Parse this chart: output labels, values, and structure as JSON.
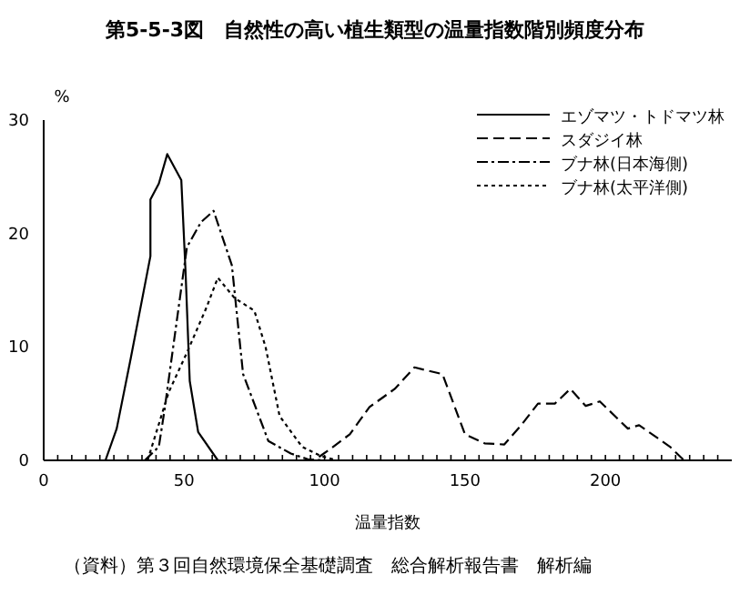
{
  "chart_data": {
    "type": "line",
    "title": "第5-5-3図　自然性の高い植生類型の温量指数階別頻度分布",
    "xlabel": "温量指数",
    "ylabel": "%",
    "annotations": [
      "（資料）第３回自然環境保全基礎調査　総合解析報告書　解析編"
    ],
    "legend": "top right",
    "grid": false,
    "marker": "none",
    "xlim": [
      0,
      245
    ],
    "ylim": [
      0,
      30
    ],
    "xticks": [
      0,
      {
        "value": 5,
        "label": null
      },
      {
        "value": 10,
        "label": null
      },
      {
        "value": 15,
        "label": null
      },
      {
        "value": 20,
        "label": null
      },
      {
        "value": 25,
        "label": null
      },
      {
        "value": 30,
        "label": null
      },
      {
        "value": 35,
        "label": null
      },
      {
        "value": 40,
        "label": null
      },
      {
        "value": 45,
        "label": null
      },
      50,
      {
        "value": 55,
        "label": null
      },
      {
        "value": 60,
        "label": null
      },
      {
        "value": 65,
        "label": null
      },
      {
        "value": 70,
        "label": null
      },
      {
        "value": 75,
        "label": null
      },
      {
        "value": 80,
        "label": null
      },
      {
        "value": 85,
        "label": null
      },
      {
        "value": 90,
        "label": null
      },
      {
        "value": 95,
        "label": null
      },
      100,
      {
        "value": 105,
        "label": null
      },
      {
        "value": 110,
        "label": null
      },
      {
        "value": 115,
        "label": null
      },
      {
        "value": 120,
        "label": null
      },
      {
        "value": 125,
        "label": null
      },
      {
        "value": 130,
        "label": null
      },
      {
        "value": 135,
        "label": null
      },
      {
        "value": 140,
        "label": null
      },
      {
        "value": 145,
        "label": null
      },
      150,
      {
        "value": 155,
        "label": null
      },
      {
        "value": 160,
        "label": null
      },
      {
        "value": 165,
        "label": null
      },
      {
        "value": 170,
        "label": null
      },
      {
        "value": 175,
        "label": null
      },
      {
        "value": 180,
        "label": null
      },
      {
        "value": 185,
        "label": null
      },
      {
        "value": 190,
        "label": null
      },
      {
        "value": 195,
        "label": null
      },
      200,
      {
        "value": 205,
        "label": null
      },
      {
        "value": 210,
        "label": null
      },
      {
        "value": 215,
        "label": null
      },
      {
        "value": 220,
        "label": null
      },
      {
        "value": 225,
        "label": null
      },
      {
        "value": 230,
        "label": null
      },
      {
        "value": 235,
        "label": null
      },
      {
        "value": 240,
        "label": null
      }
    ],
    "yticks": [
      0,
      10,
      20,
      30
    ],
    "series": [
      {
        "name": "エゾマツ・トドマツ林",
        "color": "#000000",
        "line_style": "solid",
        "x": [
          10,
          19,
          22,
          26,
          31,
          38,
          38,
          41,
          44,
          49,
          50.5,
          52,
          55,
          62
        ],
        "values": [
          0,
          0,
          0,
          2.8,
          9,
          18,
          23,
          24.4,
          27,
          24.7,
          16.7,
          7,
          2.5,
          0
        ]
      },
      {
        "name": "スダジイ林",
        "color": "#000000",
        "line_style": "dashed",
        "x": [
          98,
          102,
          109,
          116,
          125,
          132,
          142,
          150,
          157,
          164,
          170,
          176,
          182,
          187.5,
          193,
          198,
          208,
          212,
          223,
          228
        ],
        "values": [
          0.3,
          1,
          2.3,
          4.7,
          6.3,
          8.2,
          7.6,
          2.3,
          1.5,
          1.4,
          3.1,
          5,
          5,
          6.3,
          4.8,
          5.2,
          2.8,
          3.1,
          1.2,
          0
        ]
      },
      {
        "name": "ブナ林(日本海側)",
        "color": "#000000",
        "line_style": "dashdot",
        "x": [
          36,
          41,
          43,
          51,
          56,
          60.5,
          67,
          71,
          80,
          88,
          94,
          100
        ],
        "values": [
          0,
          1.2,
          4.4,
          18.8,
          21,
          22,
          17.2,
          7.6,
          1.7,
          0.6,
          0.1,
          0
        ]
      },
      {
        "name": "ブナ林(太平洋側)",
        "color": "#000000",
        "line_style": "dotted",
        "x": [
          37,
          44.5,
          51,
          58,
          62,
          68,
          75,
          79,
          84,
          92,
          98.5,
          103
        ],
        "values": [
          0,
          6,
          9.5,
          13.5,
          16.1,
          14.3,
          13.2,
          10,
          3.9,
          1.2,
          0.4,
          0.1
        ]
      }
    ]
  }
}
